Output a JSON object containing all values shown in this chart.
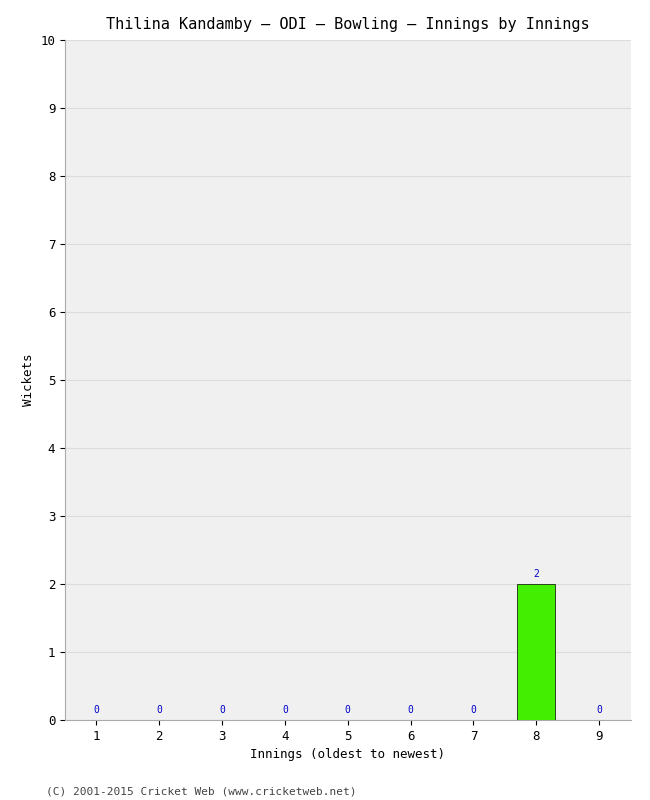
{
  "title": "Thilina Kandamby – ODI – Bowling – Innings by Innings",
  "xlabel": "Innings (oldest to newest)",
  "ylabel": "Wickets",
  "innings": [
    1,
    2,
    3,
    4,
    5,
    6,
    7,
    8,
    9
  ],
  "wickets": [
    0,
    0,
    0,
    0,
    0,
    0,
    0,
    2,
    0
  ],
  "bar_color_normal": "#44ee00",
  "bar_color_zero": "#ffffff",
  "annotation_color": "#0000cc",
  "ylim": [
    0,
    10
  ],
  "yticks": [
    0,
    1,
    2,
    3,
    4,
    5,
    6,
    7,
    8,
    9,
    10
  ],
  "background_color": "#ffffff",
  "plot_bg_color": "#f0f0f0",
  "grid_color": "#dddddd",
  "footer": "(C) 2001-2015 Cricket Web (www.cricketweb.net)",
  "title_fontsize": 11,
  "axis_label_fontsize": 9,
  "tick_fontsize": 9,
  "annotation_fontsize": 7,
  "footer_fontsize": 8
}
